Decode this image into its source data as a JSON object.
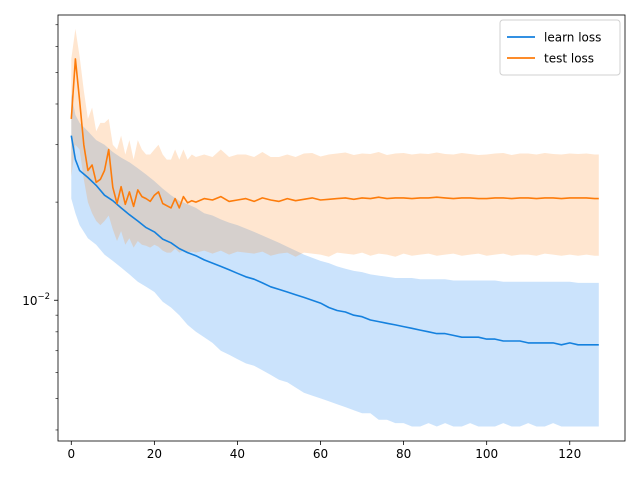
{
  "chart_data": {
    "type": "line",
    "title": "",
    "xlabel": "",
    "ylabel": "",
    "xlim": [
      -3.2,
      133.3
    ],
    "ylim": [
      0.0037,
      0.075
    ],
    "yscale": "log",
    "grid": false,
    "legend_position": "top-right",
    "x_ticks": [
      0,
      20,
      40,
      60,
      80,
      100,
      120
    ],
    "x_tick_labels": [
      "0",
      "20",
      "40",
      "60",
      "80",
      "100",
      "120"
    ],
    "y_major_ticks": [
      0.01
    ],
    "y_major_tick_labels": [
      "10^-2"
    ],
    "y_minor_ticks": [
      0.004,
      0.005,
      0.006,
      0.007,
      0.008,
      0.009,
      0.02,
      0.03,
      0.04,
      0.05,
      0.06,
      0.07
    ],
    "legend": [
      "learn loss",
      "test loss"
    ],
    "series": [
      {
        "name": "learn loss",
        "color": "#1f77b4",
        "line_color": "#1581de",
        "band_color": "#cce5fd",
        "x": [
          0,
          1,
          2,
          4,
          6,
          8,
          10,
          12,
          14,
          16,
          18,
          20,
          22,
          24,
          26,
          28,
          30,
          32,
          34,
          36,
          38,
          40,
          42,
          44,
          46,
          48,
          50,
          52,
          54,
          56,
          58,
          60,
          62,
          64,
          66,
          68,
          70,
          72,
          74,
          76,
          78,
          80,
          82,
          84,
          86,
          88,
          90,
          92,
          94,
          96,
          98,
          100,
          102,
          104,
          106,
          108,
          110,
          112,
          114,
          116,
          118,
          120,
          122,
          124,
          126,
          127
        ],
        "mean": [
          0.032,
          0.027,
          0.025,
          0.0238,
          0.0225,
          0.021,
          0.0202,
          0.0192,
          0.0183,
          0.0175,
          0.0167,
          0.0162,
          0.0154,
          0.015,
          0.0144,
          0.014,
          0.0137,
          0.0133,
          0.013,
          0.0127,
          0.0124,
          0.0121,
          0.0118,
          0.0116,
          0.0113,
          0.011,
          0.0108,
          0.0106,
          0.0104,
          0.0102,
          0.01,
          0.0098,
          0.0095,
          0.0093,
          0.0092,
          0.009,
          0.0089,
          0.0087,
          0.0086,
          0.0085,
          0.0084,
          0.0083,
          0.0082,
          0.0081,
          0.008,
          0.0079,
          0.0079,
          0.0078,
          0.0077,
          0.0077,
          0.0077,
          0.0076,
          0.0076,
          0.0075,
          0.0075,
          0.0075,
          0.0074,
          0.0074,
          0.0074,
          0.0074,
          0.0073,
          0.0074,
          0.0073,
          0.0073,
          0.0073,
          0.0073
        ],
        "lower": [
          0.0205,
          0.0185,
          0.017,
          0.0155,
          0.0148,
          0.0138,
          0.0132,
          0.0126,
          0.012,
          0.0114,
          0.011,
          0.0106,
          0.0099,
          0.0095,
          0.009,
          0.0084,
          0.008,
          0.0077,
          0.0074,
          0.007,
          0.0068,
          0.0066,
          0.0064,
          0.0063,
          0.0061,
          0.0059,
          0.0057,
          0.0056,
          0.0054,
          0.0052,
          0.0051,
          0.005,
          0.0049,
          0.0048,
          0.0047,
          0.0046,
          0.0045,
          0.0045,
          0.0043,
          0.0043,
          0.0042,
          0.0042,
          0.0041,
          0.0041,
          0.0042,
          0.0041,
          0.0042,
          0.0041,
          0.0041,
          0.0042,
          0.0041,
          0.0041,
          0.0041,
          0.0042,
          0.0041,
          0.0041,
          0.0042,
          0.0041,
          0.0041,
          0.0042,
          0.0041,
          0.0041,
          0.0041,
          0.0041,
          0.0041,
          0.0041
        ],
        "upper": [
          0.043,
          0.037,
          0.035,
          0.033,
          0.031,
          0.03,
          0.0285,
          0.0274,
          0.0265,
          0.0254,
          0.0243,
          0.0232,
          0.022,
          0.021,
          0.0202,
          0.0197,
          0.0192,
          0.0185,
          0.0182,
          0.0177,
          0.0173,
          0.017,
          0.0166,
          0.0162,
          0.0158,
          0.0154,
          0.015,
          0.0146,
          0.0142,
          0.0138,
          0.0135,
          0.0132,
          0.013,
          0.0127,
          0.0125,
          0.0123,
          0.0122,
          0.012,
          0.0119,
          0.0118,
          0.0117,
          0.0117,
          0.0117,
          0.0116,
          0.0116,
          0.0116,
          0.0116,
          0.0115,
          0.0115,
          0.0115,
          0.0115,
          0.0115,
          0.0115,
          0.0114,
          0.0114,
          0.0114,
          0.0114,
          0.0114,
          0.0114,
          0.0114,
          0.0114,
          0.0114,
          0.0113,
          0.0113,
          0.0113,
          0.0113
        ]
      },
      {
        "name": "test loss",
        "color": "#ff7f0e",
        "line_color": "#fd7c0b",
        "band_color": "#fee3cb",
        "x": [
          0,
          1,
          2,
          3,
          4,
          5,
          6,
          7,
          8,
          9,
          10,
          11,
          12,
          13,
          14,
          15,
          16,
          17,
          18,
          19,
          20,
          21,
          22,
          23,
          24,
          25,
          26,
          27,
          28,
          29,
          30,
          32,
          34,
          36,
          38,
          40,
          42,
          44,
          46,
          48,
          50,
          52,
          54,
          56,
          58,
          60,
          62,
          64,
          66,
          68,
          70,
          72,
          74,
          76,
          78,
          80,
          82,
          84,
          86,
          88,
          90,
          92,
          94,
          96,
          98,
          100,
          102,
          104,
          106,
          108,
          110,
          112,
          114,
          116,
          118,
          120,
          122,
          124,
          126,
          127
        ],
        "mean": [
          0.036,
          0.055,
          0.041,
          0.03,
          0.025,
          0.026,
          0.023,
          0.0235,
          0.025,
          0.029,
          0.0222,
          0.0198,
          0.0223,
          0.0197,
          0.0215,
          0.0194,
          0.0218,
          0.0208,
          0.0205,
          0.0201,
          0.021,
          0.0215,
          0.0198,
          0.0195,
          0.0192,
          0.0205,
          0.0192,
          0.0208,
          0.0199,
          0.0202,
          0.02,
          0.0205,
          0.0203,
          0.0208,
          0.0201,
          0.0203,
          0.0205,
          0.0201,
          0.0206,
          0.0203,
          0.0201,
          0.0205,
          0.0202,
          0.0204,
          0.0206,
          0.0203,
          0.0204,
          0.0205,
          0.0206,
          0.0204,
          0.0206,
          0.0205,
          0.0207,
          0.0205,
          0.0206,
          0.0206,
          0.0205,
          0.0206,
          0.0206,
          0.0207,
          0.0206,
          0.0205,
          0.0206,
          0.0206,
          0.0205,
          0.0205,
          0.0206,
          0.0206,
          0.0205,
          0.0206,
          0.0206,
          0.0205,
          0.0206,
          0.0206,
          0.0205,
          0.0206,
          0.0206,
          0.0206,
          0.0205,
          0.0205
        ],
        "lower": [
          0.024,
          0.03,
          0.029,
          0.0235,
          0.02,
          0.0185,
          0.0175,
          0.017,
          0.0175,
          0.0182,
          0.0165,
          0.0152,
          0.0163,
          0.0148,
          0.0155,
          0.0145,
          0.0152,
          0.0148,
          0.0147,
          0.0145,
          0.0148,
          0.0146,
          0.0142,
          0.014,
          0.014,
          0.0144,
          0.014,
          0.0142,
          0.014,
          0.0141,
          0.014,
          0.0142,
          0.0139,
          0.0142,
          0.0138,
          0.0141,
          0.014,
          0.0139,
          0.0141,
          0.0137,
          0.0139,
          0.014,
          0.0136,
          0.014,
          0.0139,
          0.0138,
          0.0136,
          0.014,
          0.0139,
          0.0138,
          0.014,
          0.0137,
          0.0139,
          0.0138,
          0.0136,
          0.0139,
          0.0137,
          0.0138,
          0.0139,
          0.0137,
          0.0138,
          0.0139,
          0.0137,
          0.0138,
          0.0139,
          0.0137,
          0.0138,
          0.0139,
          0.0137,
          0.0138,
          0.0138,
          0.0137,
          0.0139,
          0.0138,
          0.0137,
          0.0138,
          0.0137,
          0.0138,
          0.0137,
          0.0137
        ],
        "upper": [
          0.055,
          0.068,
          0.056,
          0.044,
          0.036,
          0.039,
          0.033,
          0.035,
          0.035,
          0.036,
          0.03,
          0.029,
          0.032,
          0.028,
          0.031,
          0.027,
          0.031,
          0.029,
          0.028,
          0.028,
          0.029,
          0.03,
          0.028,
          0.027,
          0.027,
          0.029,
          0.027,
          0.029,
          0.027,
          0.028,
          0.0275,
          0.028,
          0.0275,
          0.029,
          0.0275,
          0.028,
          0.028,
          0.0275,
          0.0285,
          0.0275,
          0.0275,
          0.028,
          0.0275,
          0.0282,
          0.0283,
          0.0276,
          0.028,
          0.0282,
          0.0284,
          0.0279,
          0.0282,
          0.0281,
          0.0285,
          0.0279,
          0.0282,
          0.0283,
          0.028,
          0.0282,
          0.0281,
          0.0284,
          0.0281,
          0.028,
          0.0283,
          0.0281,
          0.0279,
          0.028,
          0.0282,
          0.0283,
          0.0279,
          0.0282,
          0.0282,
          0.028,
          0.0283,
          0.0281,
          0.028,
          0.0282,
          0.0281,
          0.0282,
          0.028,
          0.028
        ]
      }
    ]
  }
}
